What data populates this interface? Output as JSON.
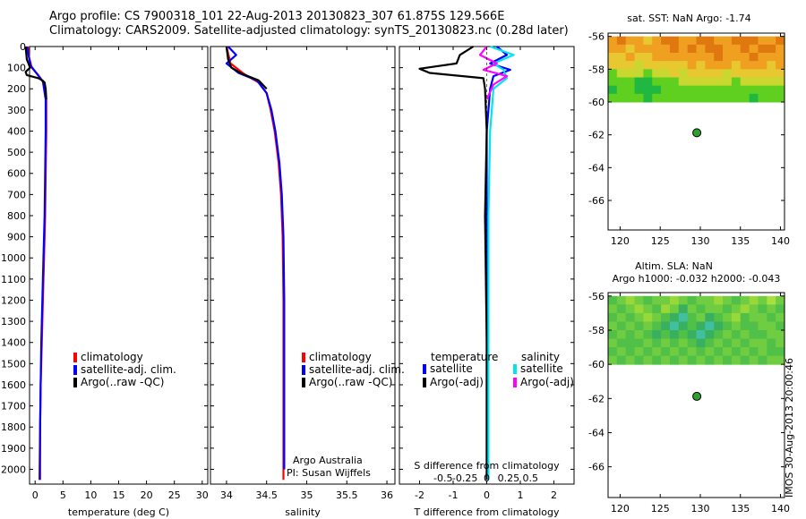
{
  "header": {
    "line1": "Argo profile: CS 7900318_101 22-Aug-2013 20130823_307 61.875S 129.566E",
    "line2": "Climatology: CARS2009. Satellite-adjusted climatology: synTS_20130823.nc (0.28d later)"
  },
  "footer_stamp": "IMOS 30-Aug-2013 20:00:46",
  "colors": {
    "climatology": "#ff0000",
    "satellite": "#0000ff",
    "argo": "#000000",
    "sal_satellite": "#00e5ee",
    "sal_argo": "#ff00ff",
    "float_marker": "#2ea02e"
  },
  "chart_data": [
    {
      "type": "line",
      "panel": "temperature",
      "xlabel": "temperature (deg C)",
      "ylabel": "",
      "xlim": [
        -1,
        31
      ],
      "ylim": [
        2070,
        0
      ],
      "xticks": [
        0,
        5,
        10,
        15,
        20,
        25,
        30
      ],
      "yticks": [
        0,
        100,
        200,
        300,
        400,
        500,
        600,
        700,
        800,
        900,
        1000,
        1100,
        1200,
        1300,
        1400,
        1500,
        1600,
        1700,
        1800,
        1900,
        2000
      ],
      "legend_placement": "bottom-left",
      "series": [
        {
          "name": "climatology",
          "color_key": "climatology",
          "x": [
            -1.3,
            -1.1,
            -0.6,
            0.4,
            1.5,
            2.0,
            2.0,
            1.9,
            1.8,
            1.6,
            1.4,
            1.2,
            1.0,
            0.9,
            0.9
          ],
          "y": [
            0,
            50,
            100,
            130,
            170,
            250,
            400,
            600,
            800,
            1000,
            1200,
            1400,
            1600,
            1800,
            2050
          ]
        },
        {
          "name": "satellite-adj. clim.",
          "color_key": "satellite",
          "x": [
            -1.5,
            -1.2,
            -0.8,
            0.2,
            1.4,
            1.9,
            1.9,
            1.8,
            1.7,
            1.5,
            1.3,
            1.1,
            1.0,
            0.9,
            0.8
          ],
          "y": [
            0,
            40,
            90,
            125,
            165,
            250,
            400,
            600,
            800,
            1000,
            1200,
            1400,
            1600,
            1800,
            2050
          ]
        },
        {
          "name": "Argo(..raw -QC)",
          "color_key": "argo",
          "x": [
            -1.7,
            -1.5,
            -0.9,
            -1.7,
            -1.5,
            0.6,
            1.3,
            1.7,
            1.9,
            2.0
          ],
          "y": [
            0,
            60,
            100,
            120,
            135,
            150,
            160,
            170,
            200,
            250
          ]
        }
      ]
    },
    {
      "type": "line",
      "panel": "salinity",
      "xlabel": "salinity",
      "ylabel": "",
      "xlim": [
        33.8,
        36.1
      ],
      "ylim": [
        2070,
        0
      ],
      "xticks": [
        34,
        34.5,
        35,
        35.5,
        36
      ],
      "legend_placement": "bottom-left",
      "annotation": [
        "Argo Australia",
        "PI: Susan Wijffels"
      ],
      "series": [
        {
          "name": "climatology",
          "color_key": "climatology",
          "x": [
            34.0,
            34.05,
            34.22,
            34.4,
            34.5,
            34.55,
            34.6,
            34.65,
            34.68,
            34.7,
            34.71,
            34.71,
            34.71,
            34.71
          ],
          "y": [
            0,
            80,
            130,
            170,
            220,
            300,
            400,
            550,
            700,
            900,
            1200,
            1500,
            1800,
            2050
          ]
        },
        {
          "name": "satellite-adj. clim.",
          "color_key": "satellite",
          "x": [
            34.02,
            34.12,
            34.0,
            34.15,
            34.38,
            34.5,
            34.56,
            34.61,
            34.66,
            34.69,
            34.71,
            34.72,
            34.72,
            34.72,
            34.72
          ],
          "y": [
            0,
            40,
            80,
            125,
            160,
            220,
            300,
            400,
            550,
            700,
            900,
            1200,
            1500,
            1800,
            2000
          ]
        },
        {
          "name": "Argo(..raw -QC)",
          "color_key": "argo",
          "x": [
            34.0,
            34.02,
            34.06,
            34.2,
            34.4,
            34.5
          ],
          "y": [
            0,
            60,
            100,
            130,
            160,
            200
          ]
        }
      ]
    },
    {
      "type": "line",
      "panel": "difference",
      "xlabel": "T difference from climatology",
      "secondary_xlabel": "S difference from climatology",
      "xlim": [
        -2.6,
        2.6
      ],
      "ylim": [
        2070,
        0
      ],
      "xticks": [
        -2,
        -1,
        0,
        1,
        2
      ],
      "secondary_xticks": [
        -0.5,
        -0.25,
        0,
        0.25,
        0.5
      ],
      "legend_headings": [
        "temperature",
        "salinity"
      ],
      "series": [
        {
          "name": "satellite",
          "group": "temperature",
          "color_key": "satellite",
          "x": [
            0.3,
            0.6,
            0.1,
            0.7,
            0.2,
            0.1,
            0.0,
            0.0,
            0.0,
            0.0
          ],
          "y": [
            0,
            40,
            80,
            110,
            140,
            200,
            400,
            800,
            1400,
            2050
          ]
        },
        {
          "name": "Argo(-adj)",
          "group": "temperature",
          "color_key": "argo",
          "x": [
            -0.4,
            -0.8,
            -0.9,
            -2.0,
            -1.7,
            -0.1,
            -0.05,
            0.0,
            -0.05,
            0.0,
            0.0
          ],
          "y": [
            0,
            40,
            80,
            105,
            125,
            150,
            200,
            400,
            800,
            1400,
            2050
          ]
        },
        {
          "name": "satellite",
          "group": "salinity",
          "color_key": "sal_satellite",
          "x": [
            0.1,
            0.8,
            0.2,
            0.5,
            0.6,
            0.2,
            0.1,
            0.05,
            0.05,
            0.05
          ],
          "y": [
            0,
            40,
            80,
            110,
            150,
            200,
            400,
            800,
            1400,
            2050
          ]
        },
        {
          "name": "Argo(-adj)",
          "group": "salinity",
          "color_key": "sal_argo",
          "x": [
            0.0,
            -0.2,
            0.3,
            -0.1,
            0.6,
            0.2,
            0.0
          ],
          "y": [
            0,
            40,
            80,
            110,
            140,
            180,
            250
          ]
        }
      ]
    },
    {
      "type": "heatmap",
      "panel": "sst_map",
      "title": "sat. SST: NaN Argo: -1.74",
      "xlim": [
        118.5,
        140.5
      ],
      "ylim": [
        -67.8,
        -55.8
      ],
      "xticks": [
        120,
        125,
        130,
        135,
        140
      ],
      "yticks": [
        -56,
        -58,
        -60,
        -62,
        -64,
        -66
      ],
      "data_lat_range": [
        -60,
        -56
      ],
      "palette": [
        "#e07810",
        "#f0a020",
        "#e8c830",
        "#c8d830",
        "#60d020",
        "#20b840"
      ],
      "grid_values": [
        [
          1,
          0,
          1,
          1,
          2,
          1,
          0,
          0,
          1,
          1,
          0,
          0,
          1,
          1,
          0,
          0,
          0,
          1,
          1,
          0
        ],
        [
          1,
          1,
          2,
          1,
          1,
          1,
          1,
          0,
          1,
          0,
          1,
          0,
          0,
          1,
          1,
          0,
          1,
          0,
          0,
          1
        ],
        [
          2,
          2,
          1,
          2,
          2,
          1,
          1,
          1,
          1,
          1,
          1,
          1,
          0,
          1,
          1,
          1,
          0,
          1,
          1,
          1
        ],
        [
          2,
          2,
          2,
          3,
          2,
          2,
          2,
          2,
          2,
          1,
          2,
          1,
          1,
          1,
          2,
          1,
          1,
          1,
          2,
          1
        ],
        [
          4,
          3,
          3,
          3,
          4,
          3,
          3,
          2,
          3,
          2,
          2,
          2,
          2,
          3,
          2,
          2,
          2,
          2,
          2,
          2
        ],
        [
          4,
          4,
          4,
          5,
          5,
          4,
          4,
          4,
          3,
          3,
          3,
          3,
          3,
          3,
          4,
          3,
          3,
          3,
          3,
          3
        ],
        [
          5,
          4,
          4,
          5,
          5,
          5,
          4,
          4,
          4,
          4,
          4,
          4,
          4,
          4,
          4,
          4,
          4,
          4,
          4,
          4
        ],
        [
          4,
          4,
          4,
          4,
          5,
          4,
          4,
          4,
          4,
          4,
          4,
          4,
          4,
          4,
          4,
          4,
          5,
          4,
          4,
          4
        ]
      ],
      "marker": {
        "lon": 129.566,
        "lat": -61.875
      }
    },
    {
      "type": "heatmap",
      "panel": "sla_map",
      "title": "Altim. SLA: NaN",
      "subtitle": "Argo h1000: -0.032 h2000: -0.043",
      "xlim": [
        118.5,
        140.5
      ],
      "ylim": [
        -67.8,
        -55.8
      ],
      "xticks": [
        120,
        125,
        130,
        135,
        140
      ],
      "yticks": [
        -56,
        -58,
        -60,
        -62,
        -64,
        -66
      ],
      "data_lat_range": [
        -60,
        -56
      ],
      "palette": [
        "#98d838",
        "#70cc40",
        "#50c048",
        "#38b060",
        "#40c0a0",
        "#a8e040"
      ],
      "grid_values": [
        [
          2,
          1,
          0,
          1,
          2,
          1,
          1,
          0,
          1,
          2,
          1,
          1,
          0,
          1,
          2,
          1,
          0,
          1,
          5,
          1
        ],
        [
          1,
          2,
          1,
          0,
          1,
          2,
          0,
          1,
          3,
          1,
          2,
          1,
          1,
          2,
          1,
          0,
          1,
          2,
          1,
          2
        ],
        [
          2,
          1,
          2,
          1,
          0,
          1,
          2,
          3,
          4,
          2,
          1,
          3,
          2,
          1,
          0,
          2,
          1,
          1,
          2,
          1
        ],
        [
          1,
          2,
          1,
          2,
          1,
          2,
          3,
          4,
          3,
          2,
          3,
          4,
          3,
          2,
          1,
          2,
          2,
          1,
          1,
          2
        ],
        [
          2,
          1,
          2,
          1,
          2,
          3,
          2,
          3,
          2,
          3,
          4,
          3,
          2,
          1,
          2,
          1,
          2,
          2,
          1,
          1
        ],
        [
          1,
          2,
          2,
          2,
          1,
          2,
          1,
          2,
          1,
          2,
          3,
          2,
          1,
          2,
          1,
          2,
          1,
          1,
          2,
          1
        ],
        [
          2,
          1,
          2,
          1,
          2,
          1,
          2,
          1,
          2,
          1,
          2,
          1,
          2,
          1,
          2,
          1,
          2,
          1,
          2,
          2
        ],
        [
          1,
          2,
          1,
          2,
          1,
          2,
          1,
          2,
          1,
          2,
          1,
          2,
          1,
          2,
          1,
          2,
          1,
          2,
          1,
          1
        ]
      ],
      "marker": {
        "lon": 129.566,
        "lat": -61.875
      }
    }
  ]
}
